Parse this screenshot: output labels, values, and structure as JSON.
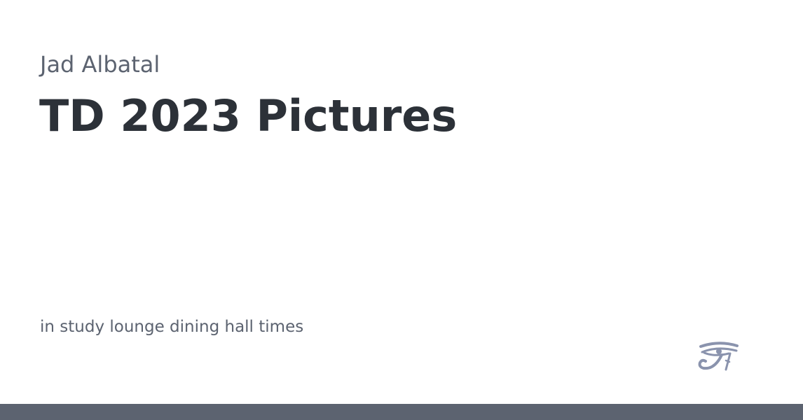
{
  "card": {
    "author": "Jad Albatal",
    "title": "TD 2023 Pictures",
    "description": "in study lounge dining hall times"
  },
  "logo": {
    "icon": "eye-of-horus-icon",
    "color": "#8a93ad"
  },
  "footer": {
    "bar_color": "#5c6370"
  }
}
